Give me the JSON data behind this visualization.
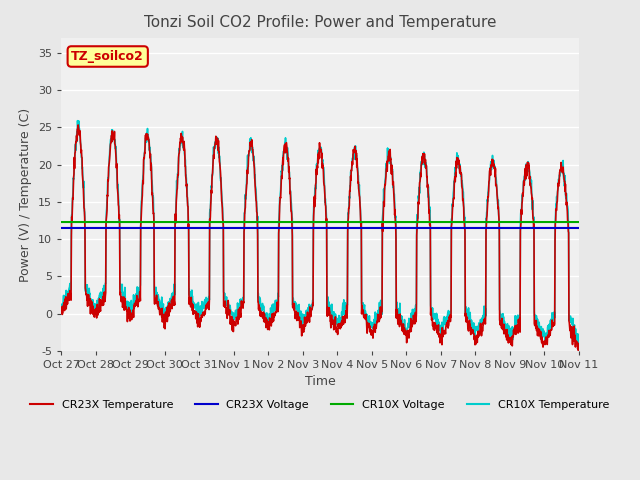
{
  "title": "Tonzi Soil CO2 Profile: Power and Temperature",
  "xlabel": "Time",
  "ylabel": "Power (V) / Temperature (C)",
  "ylim": [
    -5,
    37
  ],
  "yticks": [
    -5,
    0,
    5,
    10,
    15,
    20,
    25,
    30,
    35
  ],
  "x_tick_labels": [
    "Oct 27",
    "Oct 28",
    "Oct 29",
    "Oct 30",
    "Oct 31",
    "Nov 1",
    "Nov 2",
    "Nov 3",
    "Nov 4",
    "Nov 5",
    "Nov 6",
    "Nov 7",
    "Nov 8",
    "Nov 9",
    "Nov 10",
    "Nov 11"
  ],
  "cr23x_voltage_value": 11.5,
  "cr10x_voltage_value": 12.3,
  "bg_color": "#e8e8e8",
  "plot_bg_color": "#f0f0f0",
  "cr23x_temp_color": "#cc0000",
  "cr23x_voltage_color": "#0000cc",
  "cr10x_voltage_color": "#00aa00",
  "cr10x_temp_color": "#00cccc",
  "annotation_text": "TZ_soilco2",
  "annotation_bg": "#ffff99",
  "annotation_border": "#cc0000",
  "annotation_text_color": "#cc0000",
  "legend_labels": [
    "CR23X Temperature",
    "CR23X Voltage",
    "CR10X Voltage",
    "CR10X Temperature"
  ],
  "legend_colors": [
    "#cc0000",
    "#0000cc",
    "#00aa00",
    "#00cccc"
  ]
}
